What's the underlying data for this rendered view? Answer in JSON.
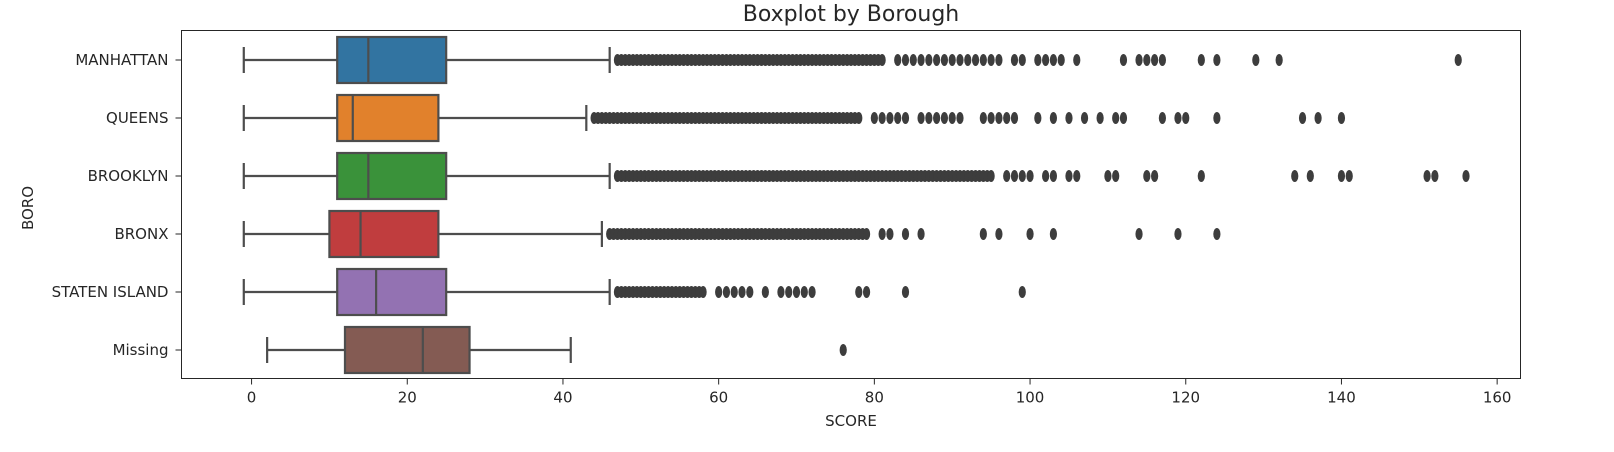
{
  "chart_data": {
    "type": "boxplot",
    "orientation": "horizontal",
    "title": "Boxplot by Borough",
    "xlabel": "SCORE",
    "ylabel": "BORO",
    "xlim": [
      -9,
      163
    ],
    "xticks": [
      0,
      20,
      40,
      60,
      80,
      100,
      120,
      140,
      160
    ],
    "grid": false,
    "categories": [
      "MANHATTAN",
      "QUEENS",
      "BROOKLYN",
      "BRONX",
      "STATEN ISLAND",
      "Missing"
    ],
    "series": [
      {
        "category": "MANHATTAN",
        "color": "#3274a1",
        "whisker_low": -1,
        "q1": 11,
        "median": 15,
        "q3": 25,
        "whisker_high": 46,
        "outlier_range": [
          47,
          81
        ],
        "outliers": [
          83,
          84,
          85,
          86,
          87,
          88,
          89,
          90,
          91,
          92,
          93,
          94,
          95,
          96,
          98,
          99,
          101,
          102,
          103,
          104,
          106,
          112,
          114,
          115,
          116,
          117,
          122,
          124,
          129,
          132,
          155
        ]
      },
      {
        "category": "QUEENS",
        "color": "#e1812c",
        "whisker_low": -1,
        "q1": 11,
        "median": 13,
        "q3": 24,
        "whisker_high": 43,
        "outlier_range": [
          44,
          78
        ],
        "outliers": [
          80,
          81,
          82,
          83,
          84,
          86,
          87,
          88,
          89,
          90,
          91,
          94,
          95,
          96,
          97,
          98,
          101,
          103,
          105,
          107,
          109,
          111,
          112,
          117,
          119,
          120,
          124,
          135,
          137,
          140
        ]
      },
      {
        "category": "BROOKLYN",
        "color": "#3a923a",
        "whisker_low": -1,
        "q1": 11,
        "median": 15,
        "q3": 25,
        "whisker_high": 46,
        "outlier_range": [
          47,
          95
        ],
        "outliers": [
          97,
          98,
          99,
          100,
          102,
          103,
          105,
          106,
          110,
          111,
          115,
          116,
          122,
          134,
          136,
          140,
          141,
          151,
          152,
          156
        ]
      },
      {
        "category": "BRONX",
        "color": "#c03d3e",
        "whisker_low": -1,
        "q1": 10,
        "median": 14,
        "q3": 24,
        "whisker_high": 45,
        "outlier_range": [
          46,
          79
        ],
        "outliers": [
          81,
          82,
          84,
          86,
          94,
          96,
          100,
          103,
          114,
          119,
          124
        ]
      },
      {
        "category": "STATEN ISLAND",
        "color": "#9372b2",
        "whisker_low": -1,
        "q1": 11,
        "median": 16,
        "q3": 25,
        "whisker_high": 46,
        "outlier_range": [
          47,
          58
        ],
        "outliers": [
          60,
          61,
          62,
          63,
          64,
          66,
          68,
          69,
          70,
          71,
          72,
          78,
          79,
          84,
          99
        ]
      },
      {
        "category": "Missing",
        "color": "#845b53",
        "whisker_low": 2,
        "q1": 12,
        "median": 22,
        "q3": 28,
        "whisker_high": 41,
        "outlier_range": null,
        "outliers": [
          76
        ]
      }
    ]
  },
  "style": {
    "line_color": "#4d4d4d",
    "outlier_color": "#3d3d3d",
    "axis_color": "#262626"
  }
}
